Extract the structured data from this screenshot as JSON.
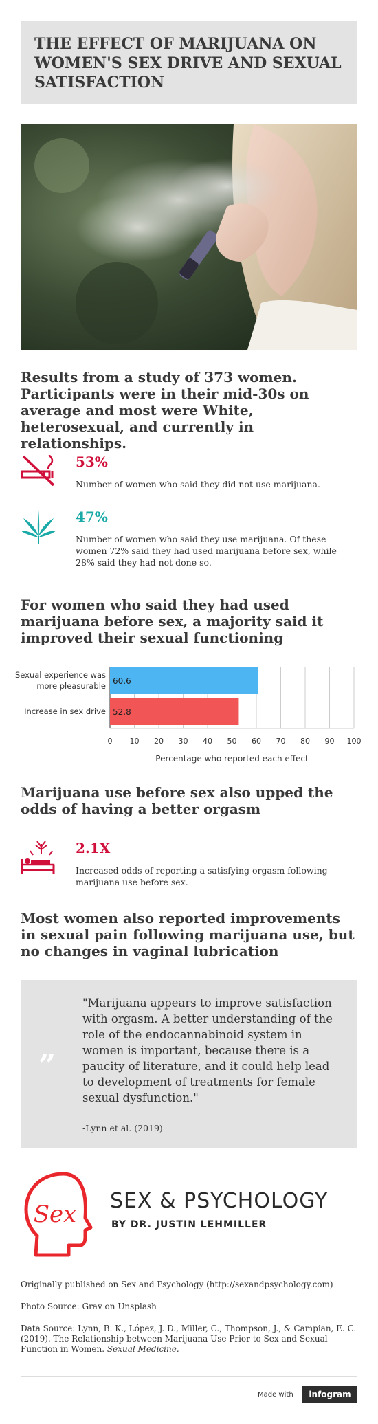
{
  "title": "THE EFFECT OF MARIJUANA ON WOMEN'S SEX DRIVE AND SEXUAL SATISFACTION",
  "intro": "Results from a study of 373 women. Participants were in their mid-30s on average and most were White, heterosexual, and currently in relationships.",
  "stats": [
    {
      "value": "53%",
      "color": "#d0103a",
      "icon": "no-smoking-icon",
      "desc": "Number of women who said they did not use marijuana."
    },
    {
      "value": "47%",
      "color": "#19a9a6",
      "icon": "cannabis-leaf-icon",
      "desc": "Number of women who said they use marijuana. Of these women 72% said they had used marijuana before sex, while 28% said they had not done so."
    }
  ],
  "section2": "For women who said they had used marijuana before sex, a majority said it improved their sexual functioning",
  "chart_data": {
    "type": "bar",
    "orientation": "horizontal",
    "categories": [
      "Sexual experience was more pleasurable",
      "Increase in sex drive"
    ],
    "values": [
      60.6,
      52.8
    ],
    "colors": [
      "#4db5f2",
      "#f25555"
    ],
    "data_labels": [
      "60.6",
      "52.8"
    ],
    "xlabel": "Percentage who reported each effect",
    "xlim": [
      0,
      100
    ],
    "ticks": [
      "0",
      "10",
      "20",
      "30",
      "40",
      "50",
      "60",
      "70",
      "80",
      "90",
      "100"
    ],
    "category_lines": [
      [
        "Sexual experience was",
        "more pleasurable"
      ],
      [
        "Increase in sex drive"
      ]
    ],
    "grid": true
  },
  "section3": "Marijuana use before sex also upped the odds of having a better orgasm",
  "stat3": {
    "value": "2.1X",
    "color": "#d0103a",
    "icon": "bed-fireworks-icon",
    "desc": "Increased odds of reporting a satisfying orgasm following marijuana use before sex."
  },
  "section4": "Most women also reported improvements in sexual pain following marijuana use, but no changes in vaginal lubrication",
  "quote": {
    "mark": "”",
    "text": "\"Marijuana appears to improve satisfaction with orgasm. A better understanding of the role of the endocannabinoid system in women is important, because there is a paucity of literature, and it could help lead to development of treatments for female sexual dysfunction.\"",
    "cite": "-Lynn et al. (2019)"
  },
  "logo": {
    "title": "SEX & PSYCHOLOGY",
    "subtitle": "BY DR. JUSTIN LEHMILLER",
    "mark": "Sex",
    "color": "#e8262c"
  },
  "footer": {
    "published": "Originally published on Sex and Psychology (http://sexandpsychology.com)",
    "photo_source": "Photo Source: Grav on Unsplash",
    "data_source": "Data Source: Lynn, B. K., López, J. D., Miller, C., Thompson, J., & Campian, E. C. (2019). The Relationship between Marijuana Use Prior to Sex and Sexual Function in Women.",
    "journal": "Sexual Medicine.",
    "made_with": "Made with",
    "brand": "infogram"
  }
}
